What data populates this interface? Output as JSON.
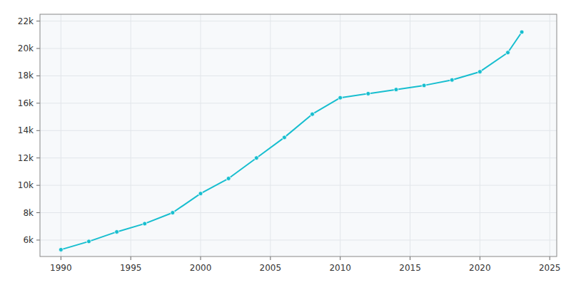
{
  "chart_data": {
    "type": "line",
    "x": [
      1990,
      1992,
      1994,
      1996,
      1998,
      2000,
      2002,
      2004,
      2006,
      2008,
      2010,
      2012,
      2014,
      2016,
      2018,
      2020,
      2022,
      2023
    ],
    "values": [
      5300,
      5900,
      6600,
      7200,
      8000,
      9400,
      10500,
      12000,
      13500,
      15200,
      16400,
      16700,
      17000,
      17300,
      17700,
      18300,
      19700,
      21200
    ],
    "color": "#17BECF",
    "marker": "circle",
    "xlim": [
      1988.5,
      2025.5
    ],
    "ylim": [
      4800,
      22500
    ],
    "xticks": [
      1990,
      1995,
      2000,
      2005,
      2010,
      2015,
      2020,
      2025
    ],
    "yticks": [
      {
        "value": 6000,
        "label": "6k"
      },
      {
        "value": 8000,
        "label": "8k"
      },
      {
        "value": 10000,
        "label": "10k"
      },
      {
        "value": 12000,
        "label": "12k"
      },
      {
        "value": 14000,
        "label": "14k"
      },
      {
        "value": 16000,
        "label": "16k"
      },
      {
        "value": 18000,
        "label": "18k"
      },
      {
        "value": 20000,
        "label": "20k"
      },
      {
        "value": 22000,
        "label": "22k"
      }
    ],
    "grid": true
  }
}
